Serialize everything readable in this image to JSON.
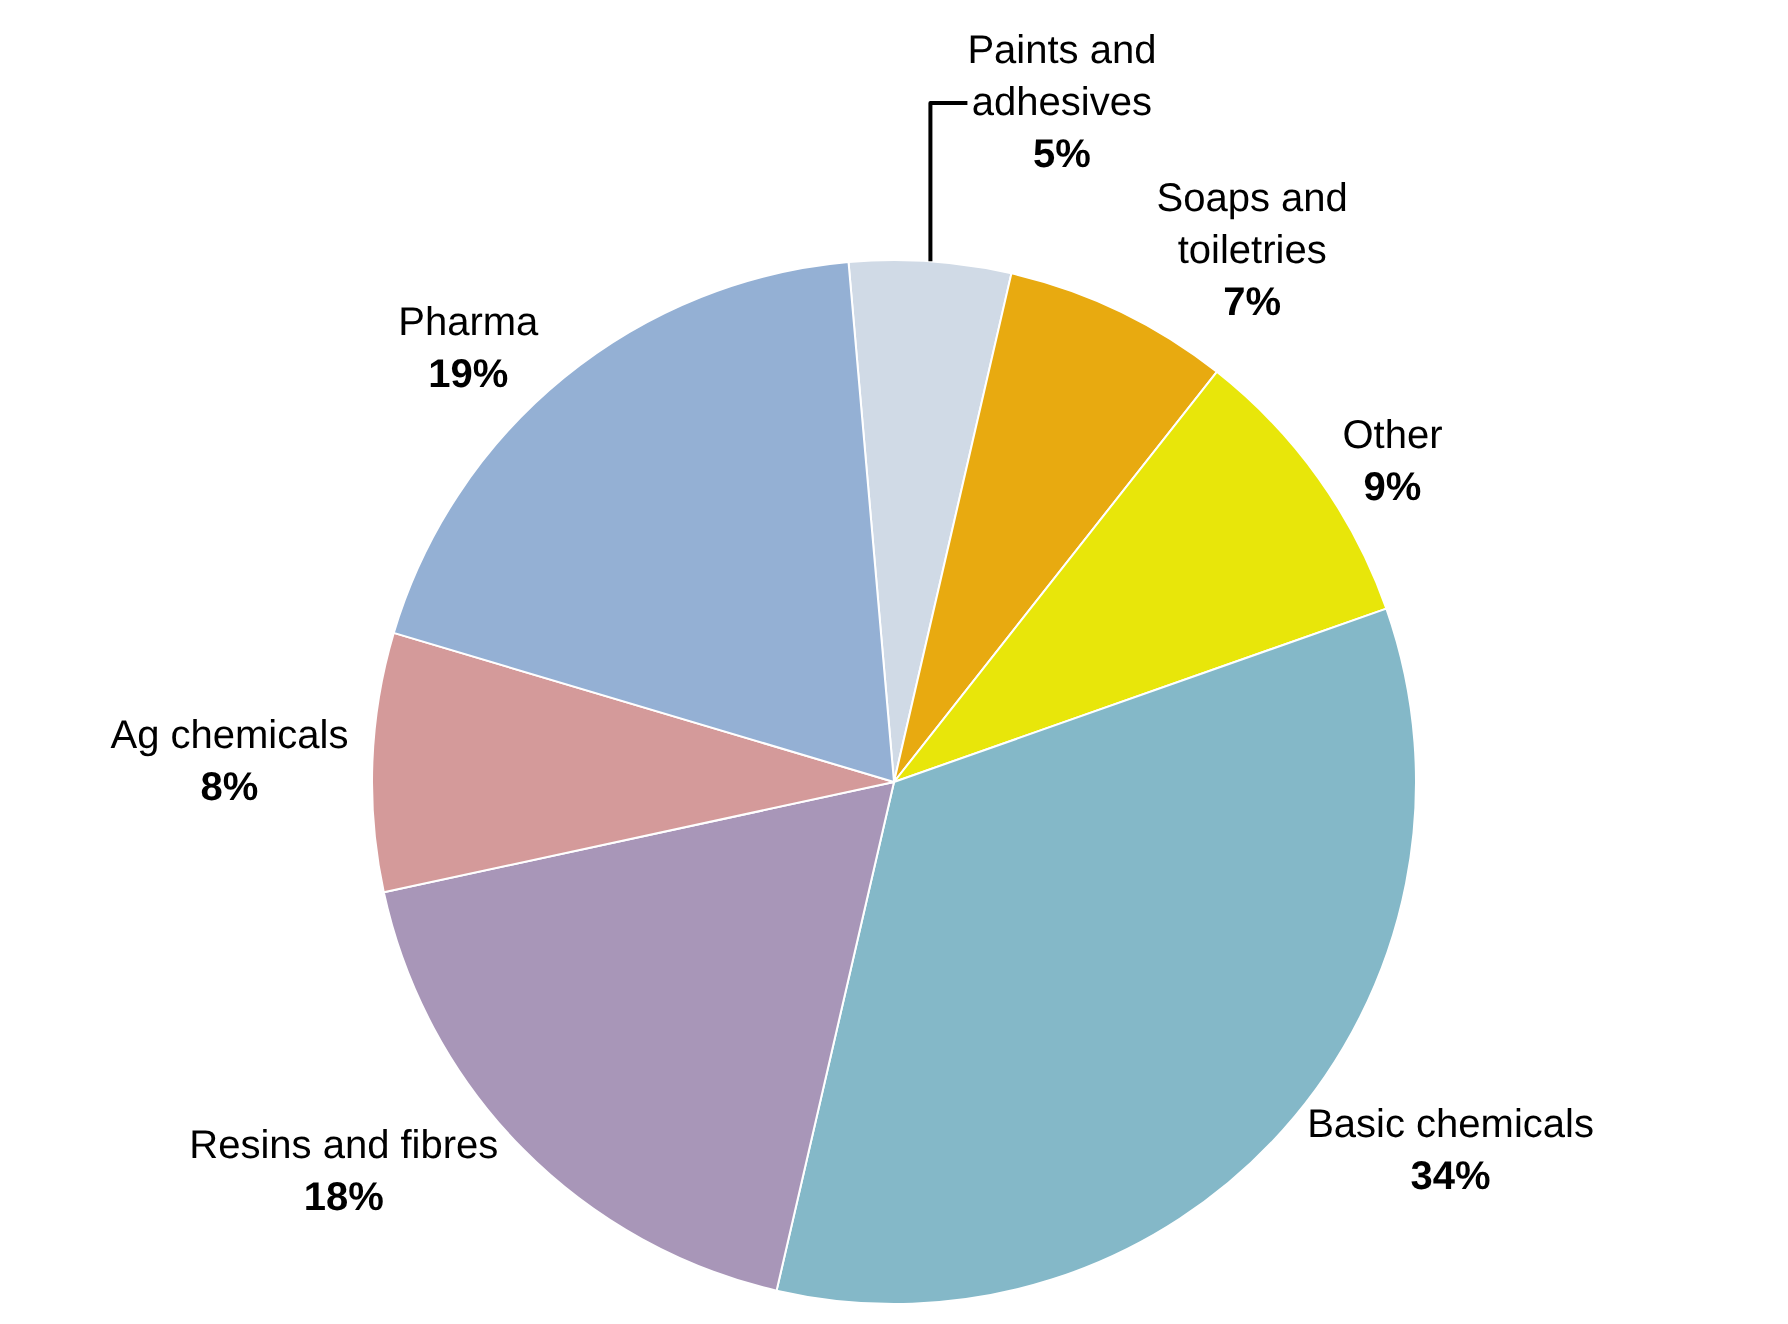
{
  "chart_data": {
    "type": "pie",
    "categories": [
      "Paints and adhesives",
      "Soaps and toiletries",
      "Other",
      "Basic chemicals",
      "Resins and fibres",
      "Ag chemicals",
      "Pharma"
    ],
    "values": [
      5,
      7,
      9,
      34,
      18,
      8,
      19
    ],
    "value_labels": [
      "5%",
      "7%",
      "9%",
      "34%",
      "18%",
      "8%",
      "19%"
    ],
    "colors": [
      "#d0dae6",
      "#e8aa10",
      "#e8e60a",
      "#84b8c8",
      "#a896b8",
      "#d49a9a",
      "#94b0d4"
    ],
    "legend": false
  }
}
